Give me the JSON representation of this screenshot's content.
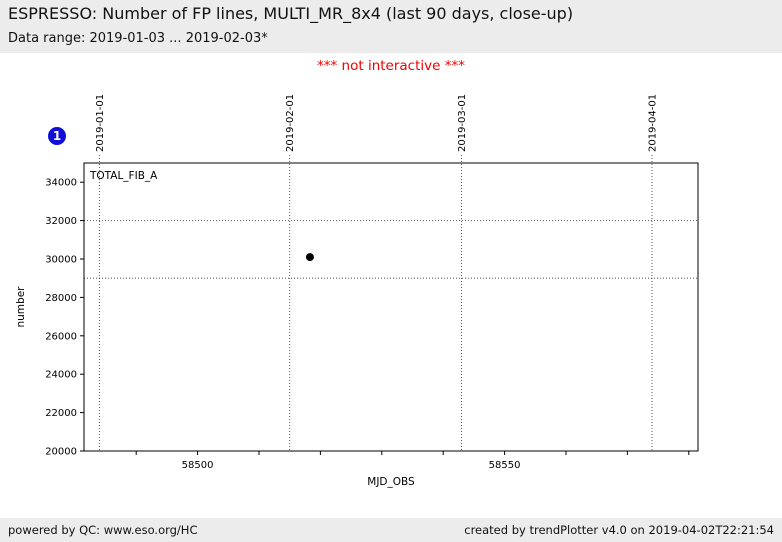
{
  "header": {
    "title": "ESPRESSO: Number of FP lines, MULTI_MR_8x4 (last 90 days, close-up)",
    "subtitle": "Data range: 2019-01-03 ... 2019-02-03*"
  },
  "notice": "*** not interactive ***",
  "badge": {
    "label": "1"
  },
  "colors": {
    "badge_blue": "#0f0fd8",
    "notice_red": "#f00000",
    "header_bg": "#ececec",
    "marker_black": "#000000"
  },
  "chart_data": {
    "type": "scatter",
    "title": "",
    "xlabel": "MJD_OBS",
    "ylabel": "number",
    "legend": "TOTAL_FIB_A",
    "legend_position": "top-left-inside",
    "grid": "dotted",
    "xlim": [
      58481.5,
      58581.5
    ],
    "ylim": [
      20000,
      35000
    ],
    "yticks": [
      20000,
      22000,
      24000,
      26000,
      28000,
      30000,
      32000,
      34000
    ],
    "xticks_minor": [
      58490,
      58500,
      58510,
      58520,
      58530,
      58540,
      58550,
      58560,
      58570,
      58580
    ],
    "xtick_labels": [
      {
        "x": 58500,
        "label": "58500"
      },
      {
        "x": 58550,
        "label": "58550"
      }
    ],
    "date_ticks": [
      {
        "x": 58484,
        "label": "2019-01-01"
      },
      {
        "x": 58515,
        "label": "2019-02-01"
      },
      {
        "x": 58543,
        "label": "2019-03-01"
      },
      {
        "x": 58574,
        "label": "2019-04-01"
      }
    ],
    "hlines": [
      29000,
      32000
    ],
    "series": [
      {
        "name": "TOTAL_FIB_A",
        "marker": "circle",
        "color": "#000000",
        "points": [
          {
            "x": 58518.3,
            "y": 30100
          }
        ]
      }
    ]
  },
  "footer": {
    "left": "powered by QC: www.eso.org/HC",
    "right": "created by trendPlotter v4.0 on 2019-04-02T22:21:54"
  }
}
